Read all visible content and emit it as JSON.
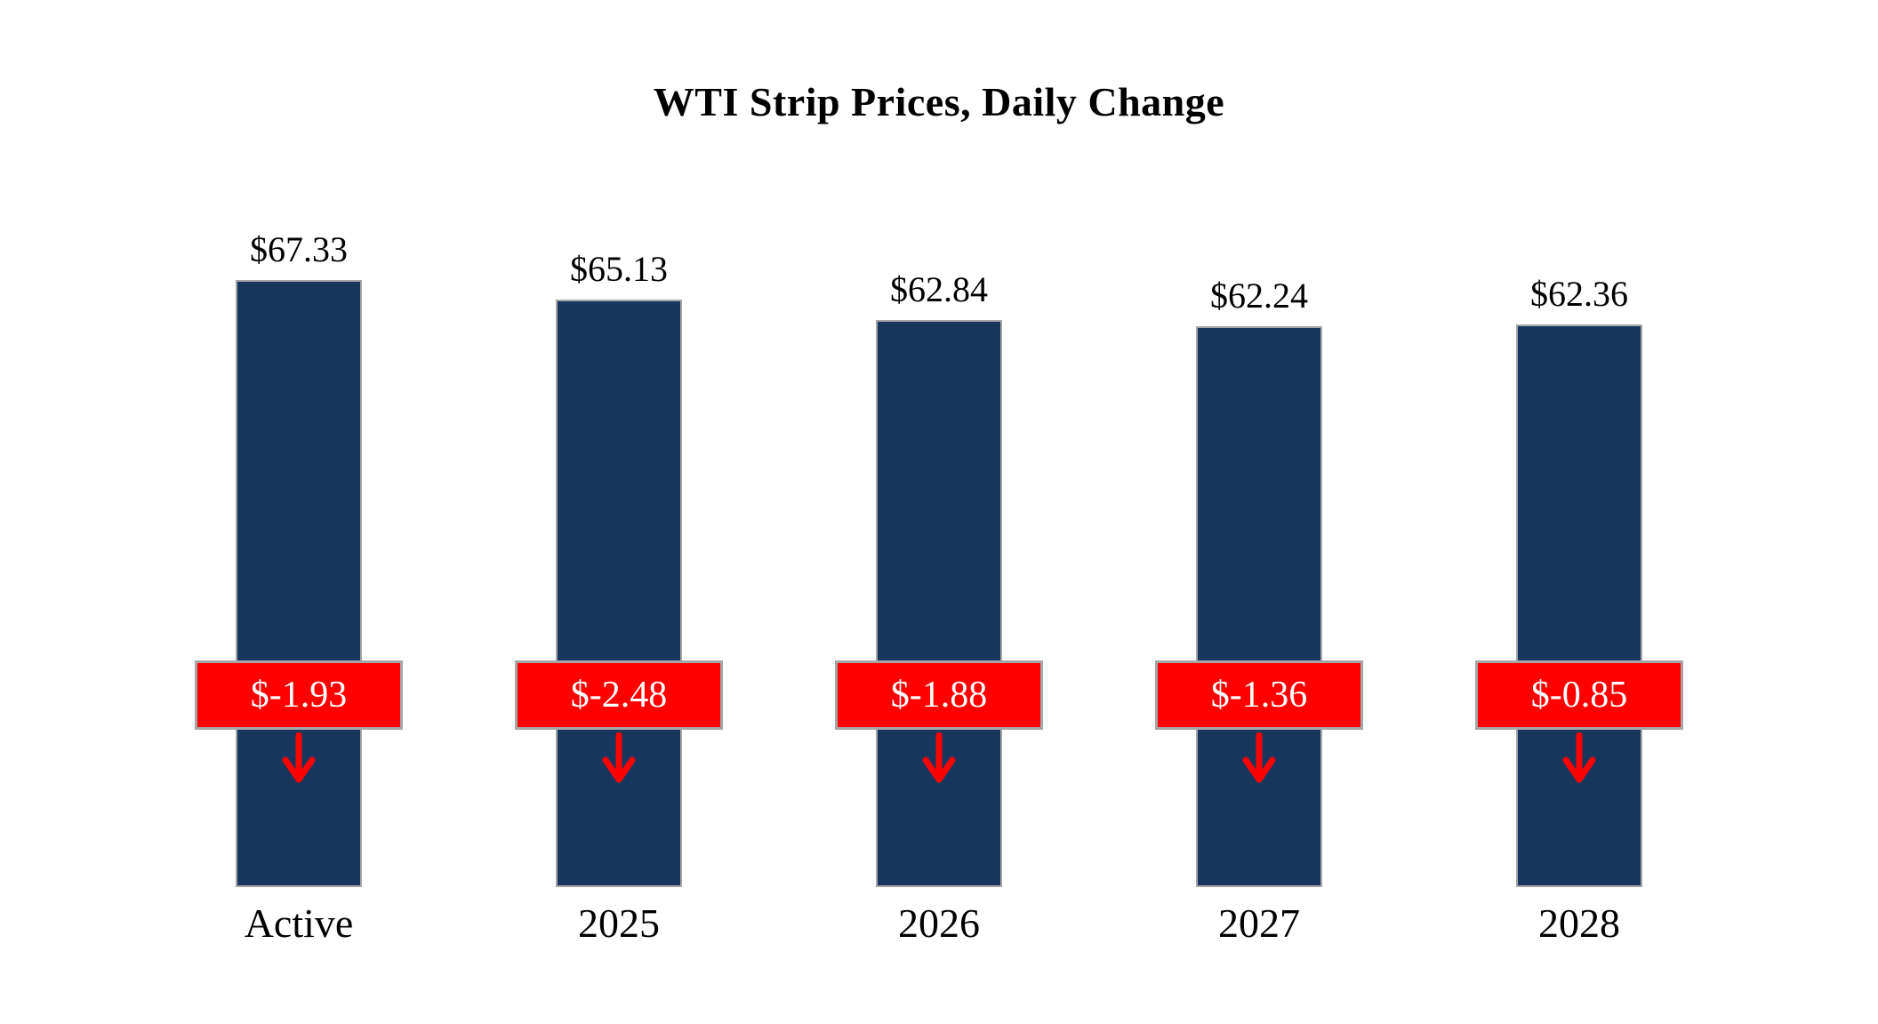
{
  "title": "WTI Strip Prices, Daily Change",
  "colors": {
    "bar": "#17375E",
    "change_badge": "#FF0000",
    "badge_border": "#A6A6A6",
    "badge_text": "#FFFFFF",
    "arrow": "#FF0000",
    "text": "#000000"
  },
  "chart_data": {
    "type": "bar",
    "title": "WTI Strip Prices, Daily Change",
    "categories": [
      "Active",
      "2025",
      "2026",
      "2027",
      "2028"
    ],
    "series": [
      {
        "name": "Strip Price",
        "values": [
          67.33,
          65.13,
          62.84,
          62.24,
          62.36
        ],
        "labels": [
          "$67.33",
          "$65.13",
          "$62.84",
          "$62.24",
          "$62.36"
        ]
      },
      {
        "name": "Daily Change",
        "values": [
          -1.93,
          -2.48,
          -1.88,
          -1.36,
          -0.85
        ],
        "labels": [
          "$-1.93",
          "$-2.48",
          "$-1.88",
          "$-1.36",
          "$-0.85"
        ]
      }
    ],
    "xlabel": "",
    "ylabel": "",
    "ylim": [
      0,
      69
    ],
    "grid": false,
    "legend": "none",
    "annotations": "red badge on each bar shows daily change with a downward red arrow"
  }
}
